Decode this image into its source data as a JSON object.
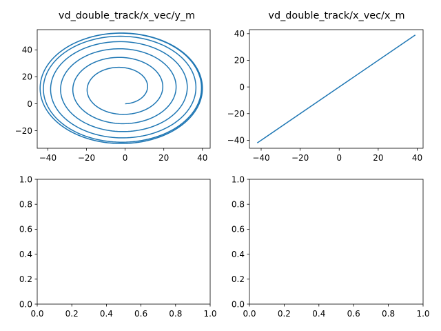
{
  "chart_data": [
    {
      "type": "line",
      "title": "vd_double_track/x_vec/y_m",
      "xlim": [
        -45.5,
        44.0
      ],
      "ylim": [
        -33.0,
        55.0
      ],
      "xticks": [
        -40,
        -20,
        0,
        20,
        40
      ],
      "yticks": [
        -20,
        0,
        20,
        40
      ],
      "xtick_labels": [
        "−40",
        "−20",
        "0",
        "20",
        "40"
      ],
      "ytick_labels": [
        "−20",
        "0",
        "20",
        "40"
      ],
      "series": [
        {
          "color": "#1f77b4",
          "spiral": {
            "center_x": -2,
            "center_y": 11.5,
            "start": [
              0,
              0
            ],
            "end": [
              30.5,
              -13.5
            ],
            "max_radius_x": 42,
            "max_radius_y": 41,
            "turns": 9
          }
        }
      ]
    },
    {
      "type": "line",
      "title": "vd_double_track/x_vec/x_m",
      "xlim": [
        -46.0,
        43.0
      ],
      "ylim": [
        -46.0,
        43.0
      ],
      "xticks": [
        -40,
        -20,
        0,
        20,
        40
      ],
      "yticks": [
        -40,
        -20,
        0,
        20,
        40
      ],
      "xtick_labels": [
        "−40",
        "−20",
        "0",
        "20",
        "40"
      ],
      "ytick_labels": [
        "−40",
        "−20",
        "0",
        "20",
        "40"
      ],
      "series": [
        {
          "color": "#1f77b4",
          "x": [
            -42,
            39
          ],
          "y": [
            -42,
            39
          ]
        }
      ]
    },
    {
      "type": "line",
      "title": "",
      "xlim": [
        0,
        1
      ],
      "ylim": [
        0,
        1
      ],
      "xticks": [
        0,
        0.2,
        0.4,
        0.6,
        0.8,
        1.0
      ],
      "yticks": [
        0,
        0.2,
        0.4,
        0.6,
        0.8,
        1.0
      ],
      "xtick_labels": [
        "0.0",
        "0.2",
        "0.4",
        "0.6",
        "0.8",
        "1.0"
      ],
      "ytick_labels": [
        "0.0",
        "0.2",
        "0.4",
        "0.6",
        "0.8",
        "1.0"
      ],
      "series": []
    },
    {
      "type": "line",
      "title": "",
      "xlim": [
        0,
        1
      ],
      "ylim": [
        0,
        1
      ],
      "xticks": [
        0,
        0.2,
        0.4,
        0.6,
        0.8,
        1.0
      ],
      "yticks": [
        0,
        0.2,
        0.4,
        0.6,
        0.8,
        1.0
      ],
      "xtick_labels": [
        "0.0",
        "0.2",
        "0.4",
        "0.6",
        "0.8",
        "1.0"
      ],
      "ytick_labels": [
        "0.0",
        "0.2",
        "0.4",
        "0.6",
        "0.8",
        "1.0"
      ],
      "series": []
    }
  ]
}
